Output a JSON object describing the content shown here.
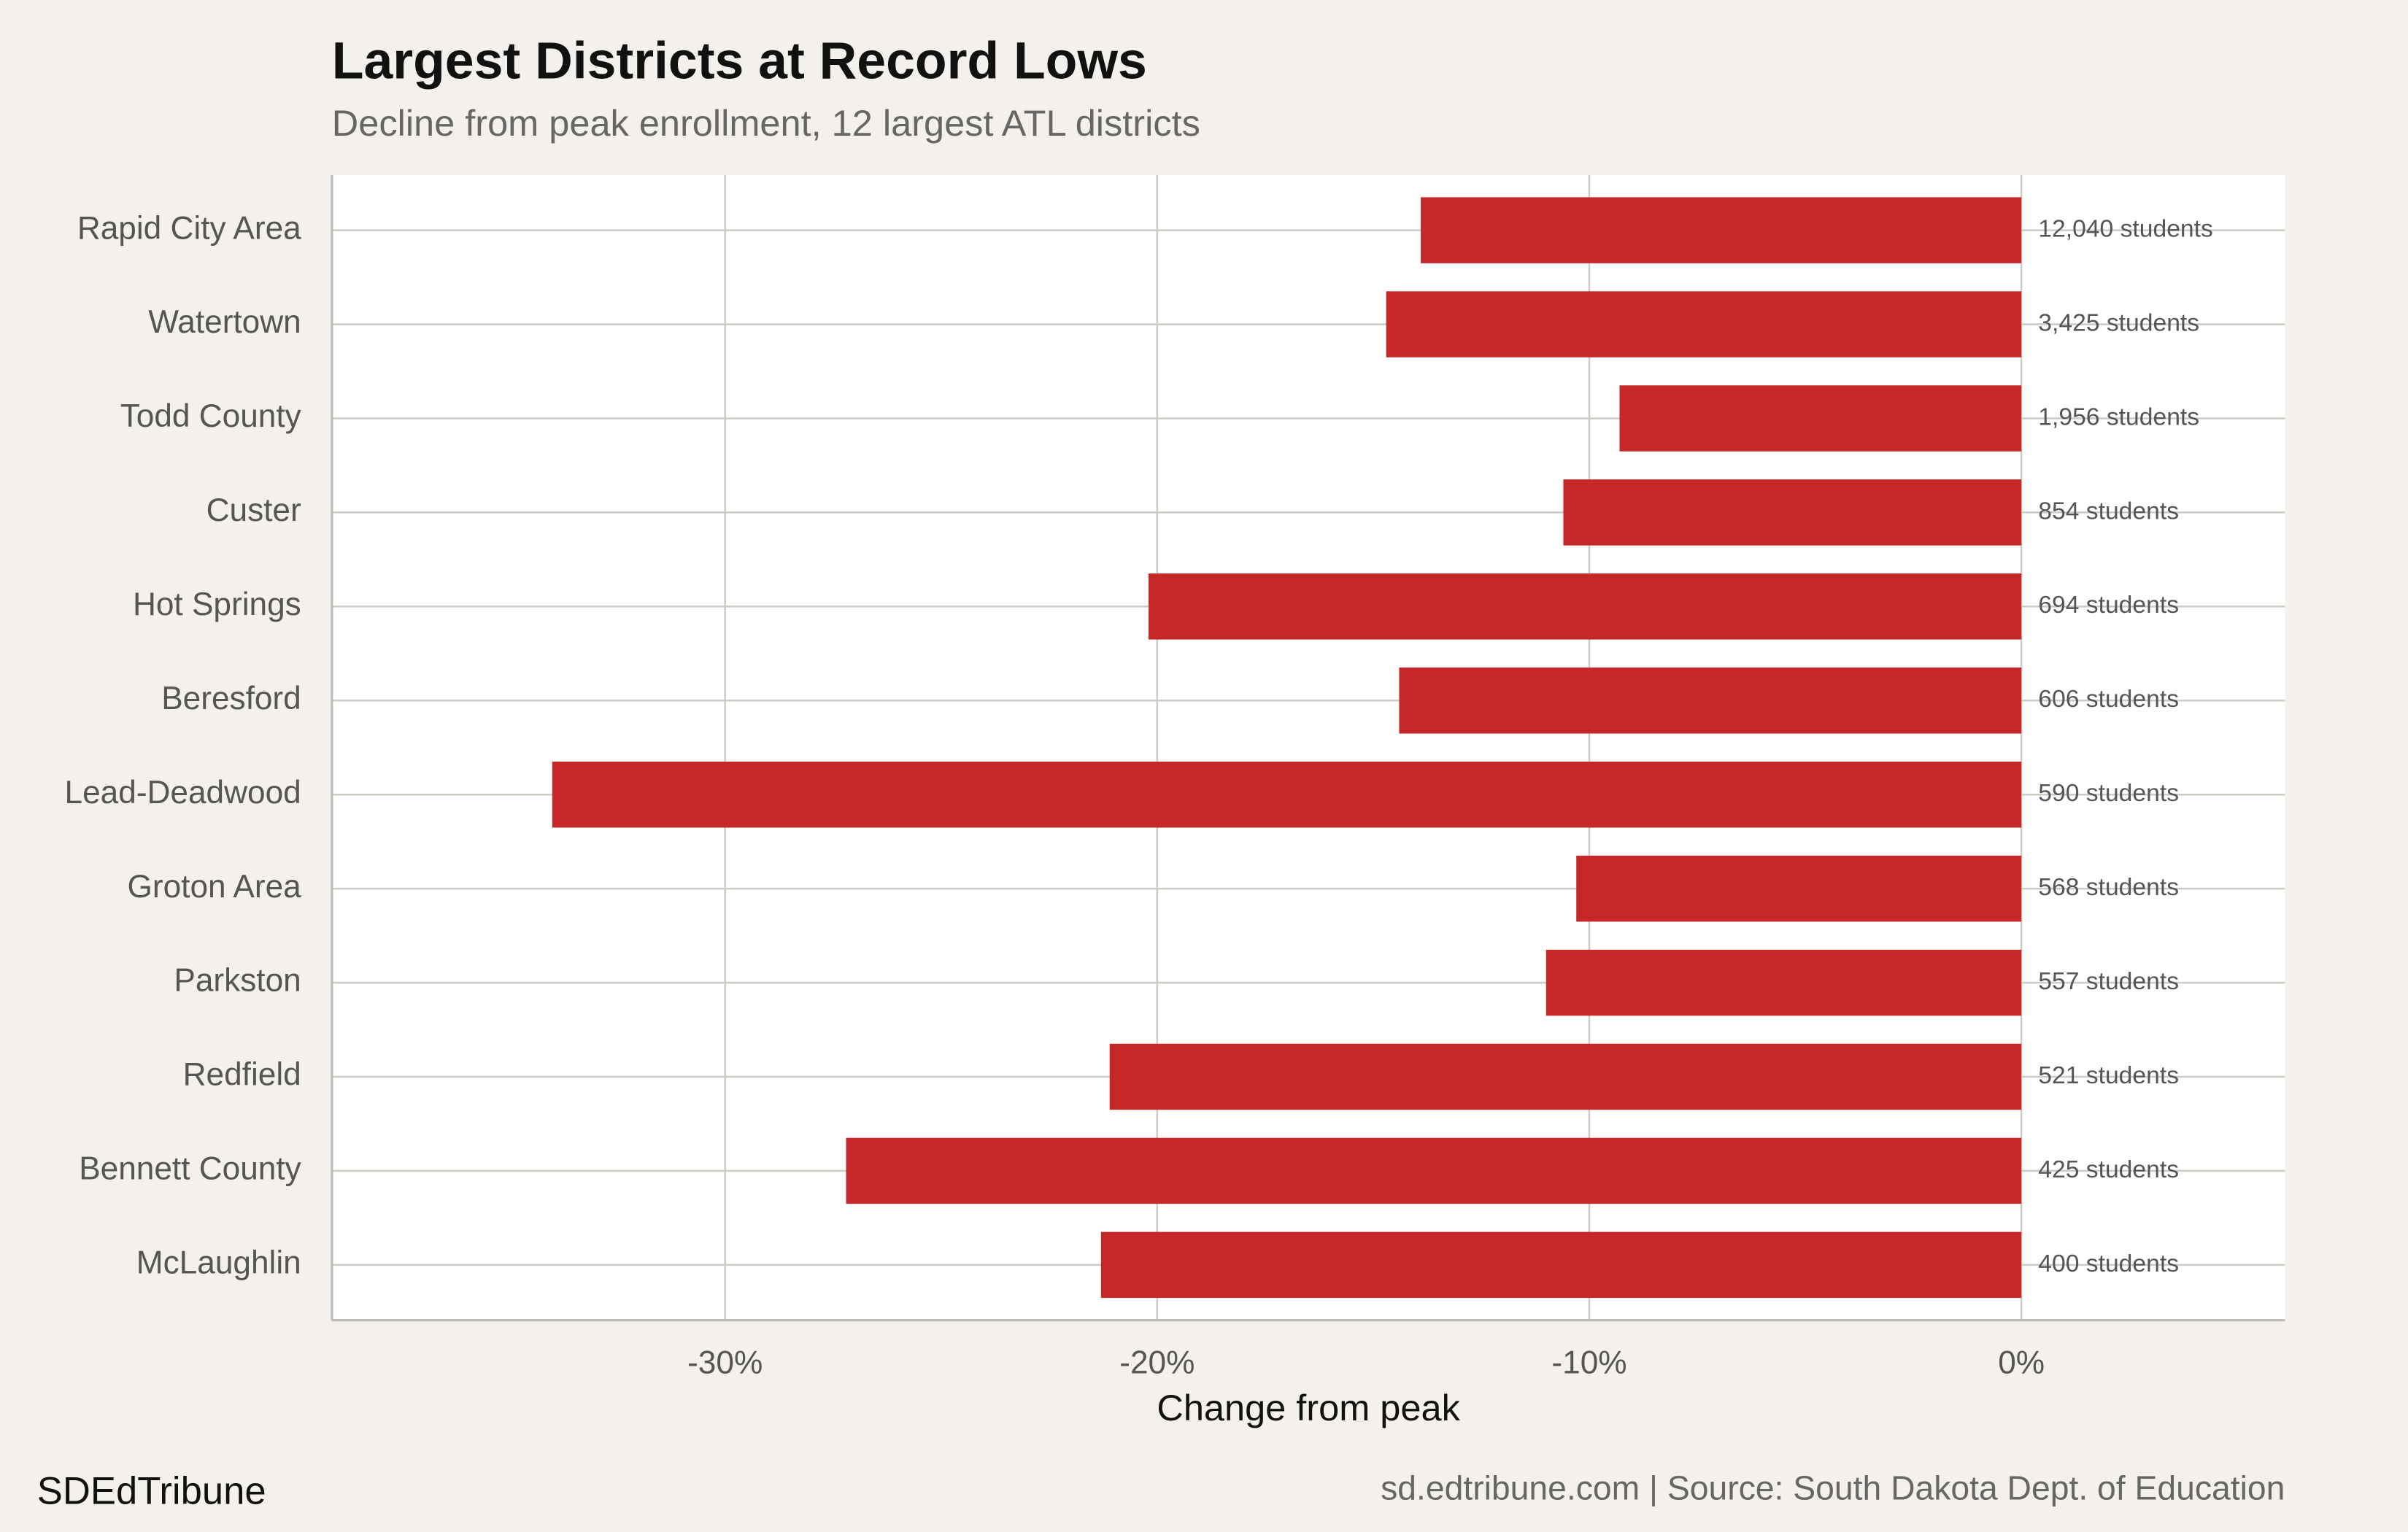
{
  "chart_data": {
    "type": "bar",
    "orientation": "horizontal",
    "title": "Largest Districts at Record Lows",
    "subtitle": "Decline from peak enrollment, 12 largest ATL districts",
    "x_label": "Change from peak",
    "brand": "SDEdTribune",
    "caption": "sd.edtribune.com | Source: South Dakota Dept. of Education",
    "categories": [
      "Rapid City Area",
      "Watertown",
      "Todd County",
      "Custer",
      "Hot Springs",
      "Beresford",
      "Lead-Deadwood",
      "Groton Area",
      "Parkston",
      "Redfield",
      "Bennett County",
      "McLaughlin"
    ],
    "values": [
      -13.9,
      -14.7,
      -9.3,
      -10.6,
      -20.2,
      -14.4,
      -34.0,
      -10.3,
      -11.0,
      -21.1,
      -27.2,
      -21.3
    ],
    "enrollment_labels": [
      "12,040 students",
      "3,425 students",
      "1,956 students",
      "854 students",
      "694 students",
      "606 students",
      "590 students",
      "568 students",
      "557 students",
      "521 students",
      "425 students",
      "400 students"
    ],
    "color": "#c62828",
    "xlim": [
      -39.1,
      6.1
    ],
    "xticks": [
      {
        "value": -30,
        "label": "-30%"
      },
      {
        "value": -20,
        "label": "-20%"
      },
      {
        "value": -10,
        "label": "-10%"
      },
      {
        "value": 0,
        "label": "0%"
      }
    ],
    "grid": true
  }
}
